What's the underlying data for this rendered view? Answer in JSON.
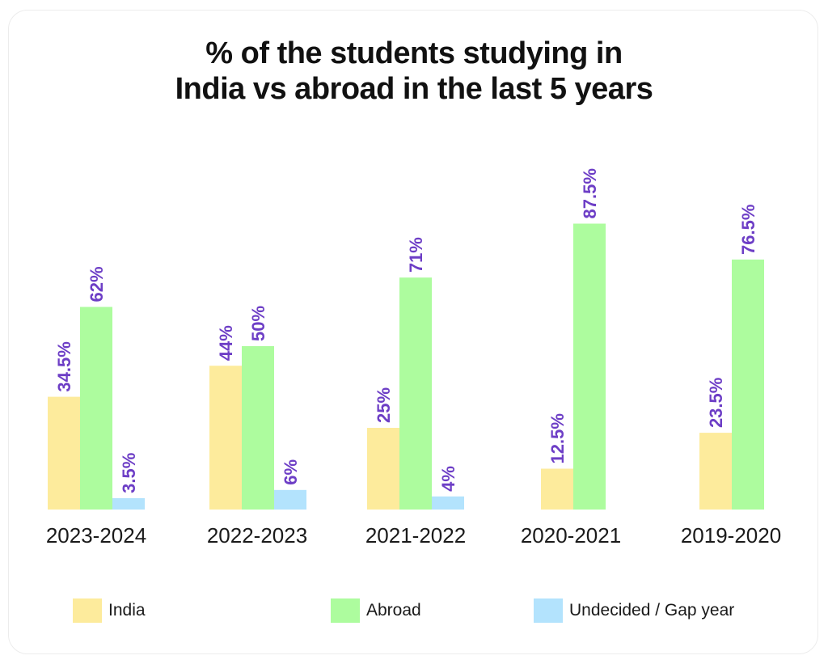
{
  "chart_data": {
    "type": "bar",
    "title_lines": [
      "% of the students studying in",
      "India vs abroad in the last 5 years"
    ],
    "categories": [
      "2023-2024",
      "2022-2023",
      "2021-2022",
      "2020-2021",
      "2019-2020"
    ],
    "series": [
      {
        "name": "India",
        "color": "#fdeb9c",
        "values": [
          34.5,
          44,
          25,
          12.5,
          23.5
        ],
        "labels": [
          "34.5%",
          "44%",
          "25%",
          "12.5%",
          "23.5%"
        ]
      },
      {
        "name": "Abroad",
        "color": "#adfc9e",
        "values": [
          62,
          50,
          71,
          87.5,
          76.5
        ],
        "labels": [
          "62%",
          "50%",
          "71%",
          "87.5%",
          "76.5%"
        ]
      },
      {
        "name": "Undecided / Gap year",
        "color": "#b3e3fd",
        "values": [
          3.5,
          6,
          4,
          null,
          null
        ],
        "labels": [
          "3.5%",
          "6%",
          "4%",
          null,
          null
        ]
      }
    ],
    "label_color": "#6d3ec6",
    "ylim": [
      0,
      100
    ],
    "grid": false,
    "legend_position": "bottom"
  }
}
